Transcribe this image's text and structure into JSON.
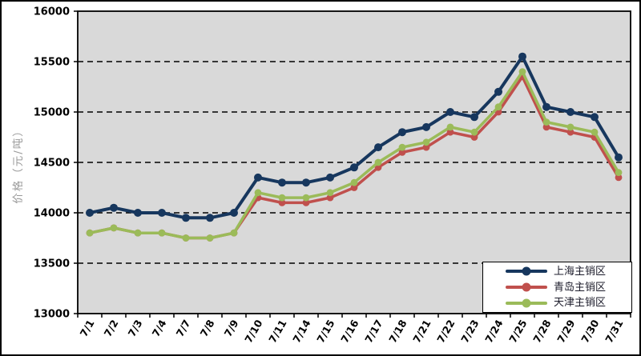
{
  "figure": {
    "background": "#ffffff",
    "plot_background": "#d9d9d9",
    "border_color": "#000000",
    "gridline_color": "#000000"
  },
  "chart_data": {
    "type": "line",
    "title": "",
    "xlabel": "",
    "ylabel": "价格（元/吨）",
    "ylim": [
      13000,
      16000
    ],
    "yticks": [
      13000,
      13500,
      14000,
      14500,
      15000,
      15500,
      16000
    ],
    "grid": "horizontal-dashed",
    "legend_position": "inside-bottom-right",
    "categories": [
      "7/1",
      "7/2",
      "7/3",
      "7/4",
      "7/7",
      "7/8",
      "7/9",
      "7/10",
      "7/11",
      "7/14",
      "7/15",
      "7/16",
      "7/17",
      "7/18",
      "7/21",
      "7/22",
      "7/23",
      "7/24",
      "7/25",
      "7/28",
      "7/29",
      "7/30",
      "7/31"
    ],
    "series": [
      {
        "name": "上海主销区",
        "color": "#17375E",
        "marker": "circle",
        "values": [
          14000,
          14050,
          14000,
          14000,
          13950,
          13950,
          14000,
          14350,
          14300,
          14300,
          14350,
          14450,
          14650,
          14800,
          14850,
          15000,
          14950,
          15200,
          15550,
          15050,
          15000,
          14950,
          14550
        ]
      },
      {
        "name": "青岛主销区",
        "color": "#C0504D",
        "marker": "circle",
        "values": [
          13800,
          13850,
          13800,
          13800,
          13750,
          13750,
          13800,
          14150,
          14100,
          14100,
          14150,
          14250,
          14450,
          14600,
          14650,
          14800,
          14750,
          15000,
          15350,
          14850,
          14800,
          14750,
          14350
        ]
      },
      {
        "name": "天津主销区",
        "color": "#9BBB59",
        "marker": "circle",
        "values": [
          13800,
          13850,
          13800,
          13800,
          13750,
          13750,
          13800,
          14200,
          14150,
          14150,
          14200,
          14300,
          14500,
          14650,
          14700,
          14850,
          14800,
          15050,
          15400,
          14900,
          14850,
          14800,
          14400
        ]
      }
    ]
  }
}
